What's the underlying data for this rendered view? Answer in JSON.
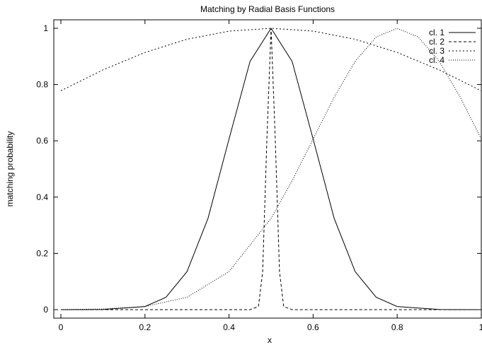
{
  "chart_data": {
    "type": "line",
    "title": "Matching by Radial Basis Functions",
    "xlabel": "x",
    "ylabel": "matching probability",
    "xlim": [
      0,
      1
    ],
    "ylim": [
      0,
      1
    ],
    "xticks": [
      "0",
      "0.2",
      "0.4",
      "0.6",
      "0.8",
      "1"
    ],
    "yticks": [
      "0",
      "0.2",
      "0.4",
      "0.6",
      "0.8",
      "1"
    ],
    "grid": false,
    "legend_position": "top-right",
    "series": [
      {
        "name": "cl. 1",
        "dash": "solid",
        "x": [
          0,
          0.1,
          0.2,
          0.25,
          0.3,
          0.35,
          0.4,
          0.45,
          0.5,
          0.55,
          0.6,
          0.65,
          0.7,
          0.75,
          0.8,
          0.9,
          1.0
        ],
        "y": [
          0,
          0.0004,
          0.0111,
          0.0439,
          0.1353,
          0.3247,
          0.6065,
          0.8825,
          1.0,
          0.8825,
          0.6065,
          0.3247,
          0.1353,
          0.0439,
          0.0111,
          0.0004,
          0
        ]
      },
      {
        "name": "cl. 2",
        "dash": "dashed",
        "x": [
          0,
          0.45,
          0.47,
          0.48,
          0.49,
          0.5,
          0.51,
          0.52,
          0.53,
          0.55,
          1.0
        ],
        "y": [
          0,
          0.0,
          0.0111,
          0.1353,
          0.6065,
          1.0,
          0.6065,
          0.1353,
          0.0111,
          0.0,
          0
        ]
      },
      {
        "name": "cl. 3",
        "dash": "dotted",
        "x": [
          0,
          0.1,
          0.2,
          0.3,
          0.4,
          0.5,
          0.6,
          0.7,
          0.8,
          0.9,
          1.0
        ],
        "y": [
          0.778,
          0.852,
          0.914,
          0.961,
          0.99,
          1.0,
          0.99,
          0.961,
          0.914,
          0.852,
          0.778
        ]
      },
      {
        "name": "cl. 4",
        "dash": "fine-dotted",
        "x": [
          0,
          0.1,
          0.2,
          0.3,
          0.4,
          0.5,
          0.55,
          0.6,
          0.65,
          0.7,
          0.75,
          0.8,
          0.85,
          0.9,
          0.95,
          1.0
        ],
        "y": [
          0.0003,
          0.0022,
          0.0111,
          0.0439,
          0.1353,
          0.3247,
          0.4578,
          0.6065,
          0.7548,
          0.8825,
          0.9692,
          1.0,
          0.9692,
          0.8825,
          0.7548,
          0.6065
        ]
      }
    ]
  }
}
